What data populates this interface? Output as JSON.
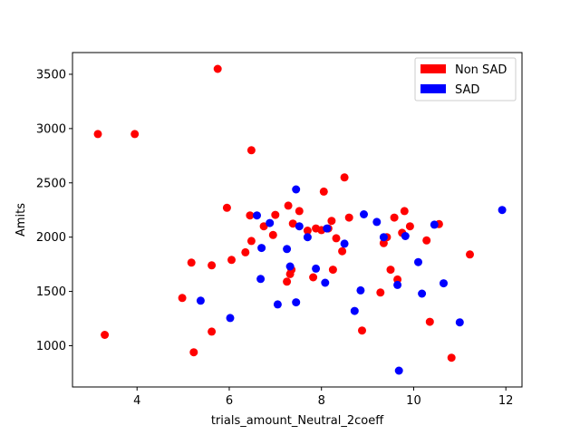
{
  "chart_data": {
    "type": "scatter",
    "title": "",
    "xlabel": "trials_amount_Neutral_2coeff",
    "ylabel": "Amits",
    "xlim": [
      2.6,
      12.35
    ],
    "ylim": [
      620,
      3700
    ],
    "xticks": [
      4,
      6,
      8,
      10,
      12
    ],
    "yticks": [
      1000,
      1500,
      2000,
      2500,
      3000,
      3500
    ],
    "grid": false,
    "legend_position": "top-right",
    "series": [
      {
        "name": "Non SAD",
        "color": "#ff0000",
        "points": [
          [
            3.15,
            2950
          ],
          [
            3.3,
            1100
          ],
          [
            3.95,
            2950
          ],
          [
            4.98,
            1440
          ],
          [
            5.18,
            1765
          ],
          [
            5.23,
            940
          ],
          [
            5.62,
            1130
          ],
          [
            5.62,
            1740
          ],
          [
            5.75,
            3550
          ],
          [
            5.95,
            2270
          ],
          [
            6.05,
            1790
          ],
          [
            6.35,
            1860
          ],
          [
            6.45,
            2200
          ],
          [
            6.48,
            2800
          ],
          [
            6.48,
            1965
          ],
          [
            6.75,
            2100
          ],
          [
            6.95,
            2020
          ],
          [
            7.0,
            2205
          ],
          [
            7.25,
            1590
          ],
          [
            7.28,
            2290
          ],
          [
            7.32,
            1660
          ],
          [
            7.35,
            1700
          ],
          [
            7.38,
            2125
          ],
          [
            7.52,
            2240
          ],
          [
            7.7,
            2060
          ],
          [
            7.82,
            1630
          ],
          [
            7.88,
            2080
          ],
          [
            8.0,
            2065
          ],
          [
            8.05,
            2420
          ],
          [
            8.15,
            2080
          ],
          [
            8.22,
            2150
          ],
          [
            8.25,
            1700
          ],
          [
            8.32,
            1990
          ],
          [
            8.45,
            1870
          ],
          [
            8.5,
            2550
          ],
          [
            8.6,
            2180
          ],
          [
            8.88,
            1140
          ],
          [
            9.28,
            1490
          ],
          [
            9.35,
            1945
          ],
          [
            9.42,
            2000
          ],
          [
            9.5,
            1700
          ],
          [
            9.58,
            2180
          ],
          [
            9.65,
            1610
          ],
          [
            9.75,
            2040
          ],
          [
            9.8,
            2240
          ],
          [
            9.92,
            2100
          ],
          [
            10.28,
            1970
          ],
          [
            10.35,
            1220
          ],
          [
            10.55,
            2120
          ],
          [
            10.82,
            890
          ],
          [
            11.22,
            1840
          ]
        ]
      },
      {
        "name": "SAD",
        "color": "#0000ff",
        "points": [
          [
            5.38,
            1415
          ],
          [
            6.02,
            1255
          ],
          [
            6.6,
            2200
          ],
          [
            6.68,
            1615
          ],
          [
            6.7,
            1900
          ],
          [
            6.88,
            2130
          ],
          [
            7.05,
            1380
          ],
          [
            7.25,
            1890
          ],
          [
            7.32,
            1730
          ],
          [
            7.45,
            2440
          ],
          [
            7.45,
            1400
          ],
          [
            7.52,
            2100
          ],
          [
            7.7,
            2000
          ],
          [
            7.88,
            1710
          ],
          [
            8.08,
            1580
          ],
          [
            8.12,
            2080
          ],
          [
            8.5,
            1940
          ],
          [
            8.72,
            1320
          ],
          [
            8.85,
            1510
          ],
          [
            8.92,
            2210
          ],
          [
            9.2,
            2140
          ],
          [
            9.35,
            2000
          ],
          [
            9.65,
            1560
          ],
          [
            9.68,
            770
          ],
          [
            9.82,
            2010
          ],
          [
            10.1,
            1770
          ],
          [
            10.18,
            1480
          ],
          [
            10.45,
            2115
          ],
          [
            10.65,
            1575
          ],
          [
            11.0,
            1215
          ],
          [
            11.92,
            2250
          ]
        ]
      }
    ]
  }
}
